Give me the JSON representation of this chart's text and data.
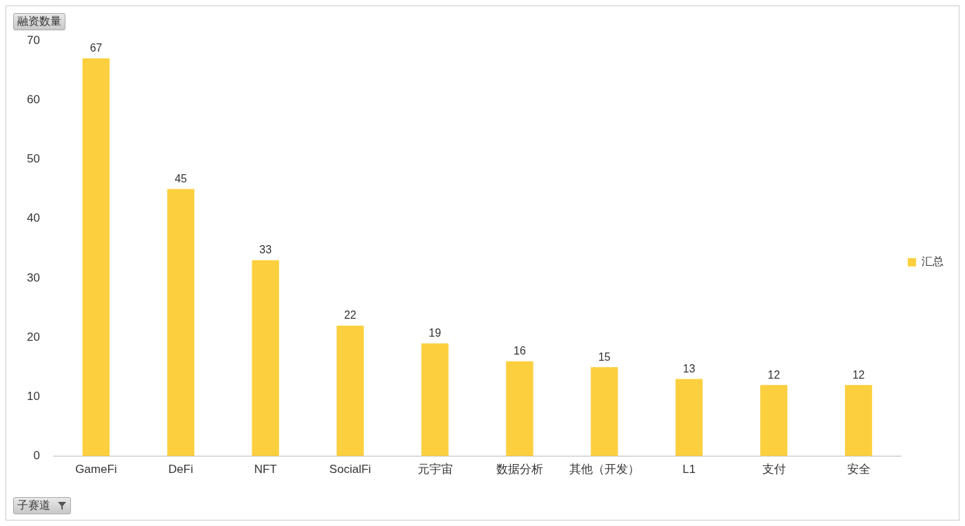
{
  "chart_data": {
    "type": "bar",
    "ylabel": "融资数量",
    "xlabel": "子赛道",
    "categories": [
      "GameFi",
      "DeFi",
      "NFT",
      "SocialFi",
      "元宇宙",
      "数据分析",
      "其他（开发）",
      "L1",
      "支付",
      "安全"
    ],
    "series": [
      {
        "name": "汇总",
        "color": "#fccf3e",
        "values": [
          67,
          45,
          33,
          22,
          19,
          16,
          15,
          13,
          12,
          12
        ]
      }
    ],
    "ylim": [
      0,
      70
    ],
    "yticks": [
      0,
      10,
      20,
      30,
      40,
      50,
      60,
      70
    ],
    "grid": false,
    "legend": "right",
    "data_labels": true
  }
}
